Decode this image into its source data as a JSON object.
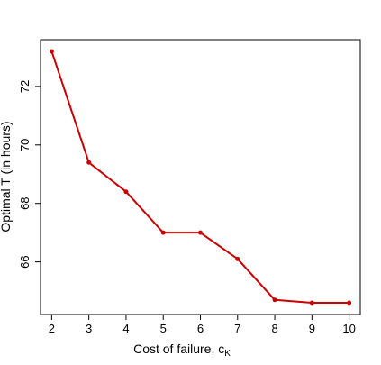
{
  "chart_data": {
    "type": "line",
    "title": "",
    "xlabel": "Cost of failure, ",
    "xlabel_symbol": "c",
    "xlabel_subscript": "K",
    "ylabel": "Optimal T (in hours)",
    "x": [
      2,
      3,
      4,
      5,
      6,
      7,
      8,
      9,
      10
    ],
    "series": [
      {
        "values": [
          73.2,
          69.4,
          68.4,
          67.0,
          67.0,
          66.1,
          64.7,
          64.6,
          64.6
        ]
      }
    ],
    "xlim": [
      1.7,
      10.3
    ],
    "ylim": [
      64.2,
      73.6
    ],
    "xticks": [
      2,
      3,
      4,
      5,
      6,
      7,
      8,
      9,
      10
    ],
    "yticks": [
      66,
      68,
      70,
      72
    ],
    "grid": false,
    "line_color": "#cc0000"
  }
}
